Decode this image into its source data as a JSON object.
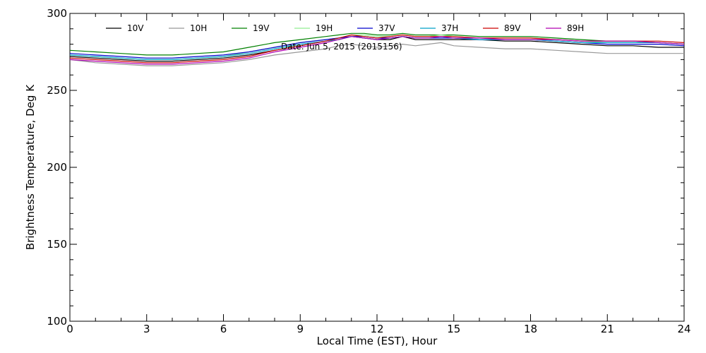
{
  "chart_data": {
    "type": "line",
    "annotation": "Date: Jun  5, 2015 (2015156)",
    "xlabel": "Local Time (EST), Hour",
    "ylabel": "Brightness Temperature, Deg K",
    "xlim": [
      0,
      24
    ],
    "ylim": [
      100,
      300
    ],
    "x_ticks": [
      0,
      3,
      6,
      9,
      12,
      15,
      18,
      21,
      24
    ],
    "y_ticks": [
      100,
      150,
      200,
      250,
      300
    ],
    "x_minor_step": 1,
    "y_minor_step": 10,
    "grid": false,
    "legend_position": "top, inside plot, single row",
    "x": [
      0,
      1,
      2,
      3,
      4,
      5,
      6,
      7,
      8,
      9,
      10,
      10.5,
      11,
      11.5,
      12,
      12.5,
      13,
      13.5,
      14,
      14.5,
      15,
      16,
      17,
      18,
      19,
      20,
      21,
      22,
      23,
      24
    ],
    "series": [
      {
        "name": "10V",
        "color": "#000000",
        "values": [
          272,
          271,
          270,
          269,
          269,
          270,
          271,
          273,
          276,
          279,
          282,
          283,
          285,
          284,
          283,
          283,
          285,
          283,
          283,
          283,
          283,
          283,
          282,
          282,
          281,
          280,
          279,
          279,
          278,
          278
        ]
      },
      {
        "name": "10H",
        "color": "#999999",
        "values": [
          270,
          268,
          267,
          266,
          266,
          267,
          268,
          270,
          273,
          275,
          277,
          279,
          280,
          279,
          278,
          279,
          280,
          279,
          280,
          281,
          279,
          278,
          277,
          277,
          276,
          275,
          274,
          274,
          274,
          274
        ]
      },
      {
        "name": "19V",
        "color": "#008000",
        "values": [
          276,
          275,
          274,
          273,
          273,
          274,
          275,
          278,
          281,
          283,
          285,
          286,
          287,
          287,
          286,
          286,
          287,
          286,
          286,
          286,
          286,
          285,
          285,
          285,
          284,
          283,
          282,
          282,
          281,
          280
        ]
      },
      {
        "name": "19H",
        "color": "#90ee90",
        "values": [
          273,
          272,
          271,
          270,
          270,
          271,
          272,
          275,
          278,
          281,
          283,
          284,
          286,
          286,
          285,
          285,
          286,
          285,
          285,
          286,
          285,
          284,
          284,
          284,
          283,
          282,
          281,
          281,
          281,
          280
        ]
      },
      {
        "name": "37V",
        "color": "#0000cc",
        "values": [
          274,
          273,
          272,
          271,
          271,
          272,
          273,
          275,
          278,
          281,
          283,
          284,
          285,
          285,
          284,
          284,
          285,
          284,
          284,
          284,
          284,
          283,
          283,
          283,
          282,
          281,
          280,
          280,
          280,
          279
        ]
      },
      {
        "name": "37H",
        "color": "#00a0c8",
        "values": [
          273,
          272,
          271,
          270,
          270,
          271,
          272,
          274,
          277,
          280,
          282,
          283,
          285,
          284,
          283,
          284,
          285,
          284,
          284,
          285,
          284,
          283,
          283,
          283,
          282,
          281,
          281,
          281,
          281,
          280
        ]
      },
      {
        "name": "89V",
        "color": "#cc0000",
        "values": [
          271,
          270,
          269,
          268,
          268,
          269,
          270,
          272,
          276,
          279,
          282,
          284,
          286,
          285,
          284,
          285,
          286,
          285,
          285,
          285,
          285,
          284,
          284,
          284,
          283,
          282,
          282,
          282,
          282,
          281
        ]
      },
      {
        "name": "89H",
        "color": "#b000b0",
        "values": [
          270,
          269,
          268,
          267,
          267,
          268,
          269,
          271,
          275,
          278,
          281,
          283,
          285,
          284,
          283,
          284,
          285,
          284,
          284,
          285,
          284,
          284,
          283,
          283,
          283,
          282,
          282,
          282,
          281,
          280
        ]
      }
    ]
  }
}
